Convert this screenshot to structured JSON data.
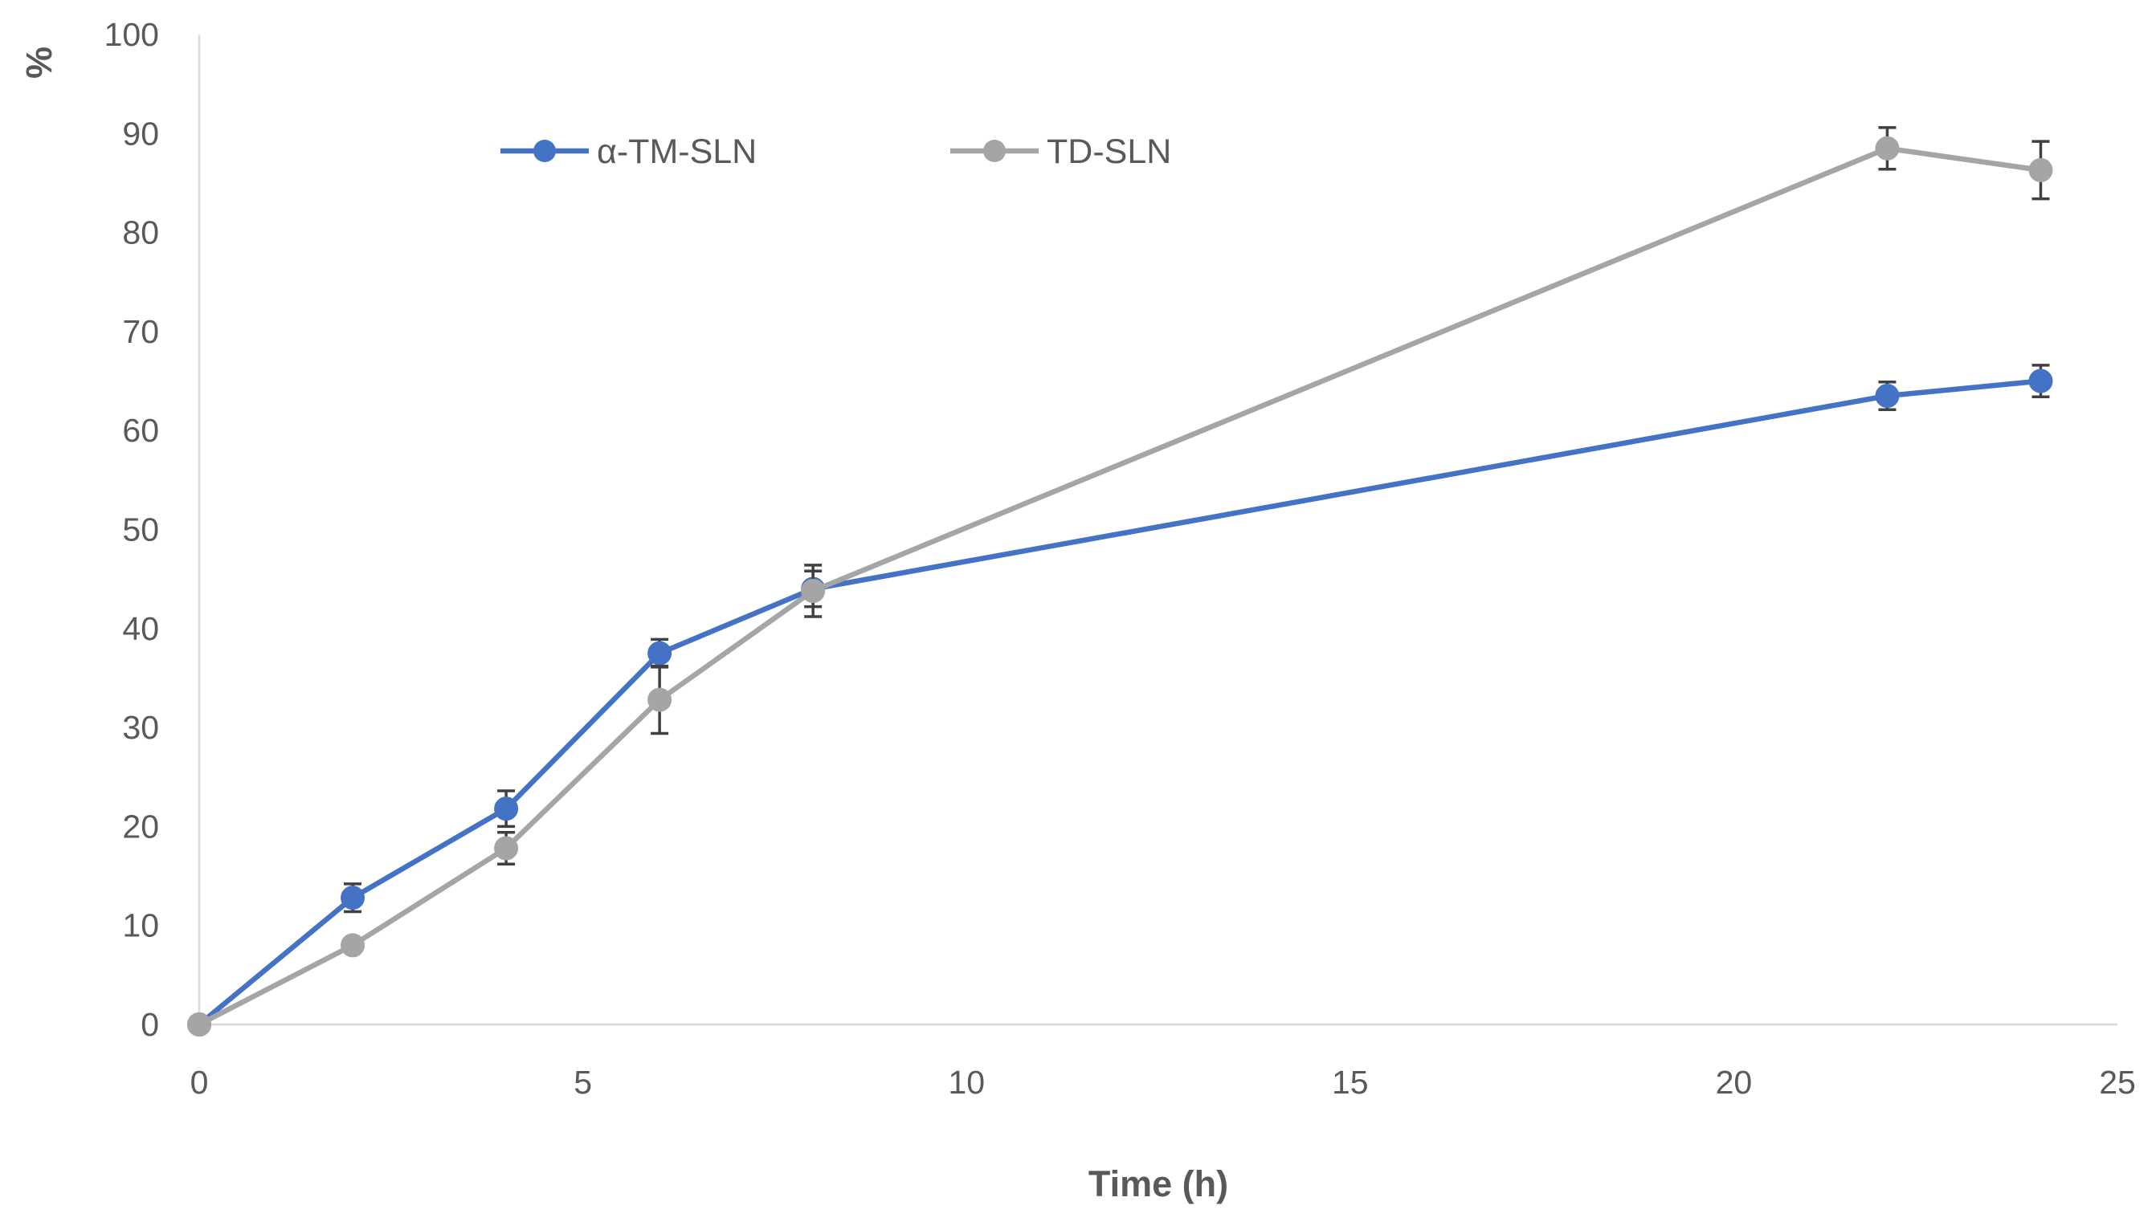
{
  "chart_data": {
    "type": "line",
    "title": "",
    "xlabel": "Time (h)",
    "ylabel": "%",
    "xlim": [
      0,
      25
    ],
    "ylim": [
      0,
      100
    ],
    "xticks": [
      0,
      5,
      10,
      15,
      20,
      25
    ],
    "yticks": [
      0,
      10,
      20,
      30,
      40,
      50,
      60,
      70,
      80,
      90,
      100
    ],
    "grid": false,
    "legend_position": "top-left",
    "series": [
      {
        "name": "α-TM-SLN",
        "color": "#4472C4",
        "x": [
          0,
          2,
          4,
          6,
          8,
          22,
          24
        ],
        "y": [
          0,
          12.8,
          21.8,
          37.5,
          44.0,
          63.5,
          65.0
        ],
        "error": [
          0,
          1.4,
          1.8,
          1.4,
          1.8,
          1.4,
          1.6
        ]
      },
      {
        "name": "TD-SLN",
        "color": "#A5A5A5",
        "x": [
          0,
          2,
          4,
          6,
          8,
          22,
          24
        ],
        "y": [
          0,
          8.0,
          17.8,
          32.8,
          43.8,
          88.5,
          86.3
        ],
        "error": [
          0,
          0.6,
          1.6,
          3.4,
          2.6,
          2.1,
          2.9
        ]
      }
    ]
  }
}
